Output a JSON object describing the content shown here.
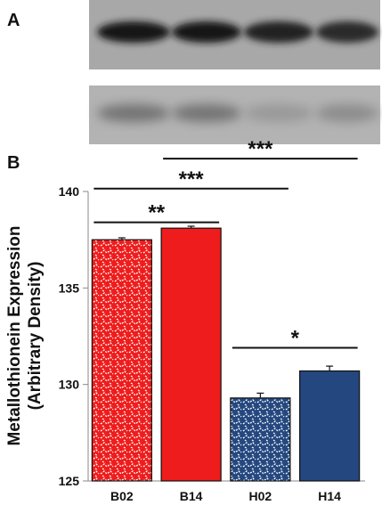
{
  "panels": {
    "a_label": "A",
    "b_label": "B"
  },
  "blot": {
    "lanes": 4,
    "band_top_darkness": [
      0.92,
      0.9,
      0.86,
      0.84
    ],
    "band_bottom_darkness": [
      0.55,
      0.55,
      0.4,
      0.45
    ]
  },
  "chart_data": {
    "type": "bar",
    "categories": [
      "B02",
      "B14",
      "H02",
      "H14"
    ],
    "values": [
      137.5,
      138.1,
      129.3,
      130.7
    ],
    "errors": [
      0.1,
      0.1,
      0.25,
      0.25
    ],
    "xlabel": "",
    "ylabel_line1": "Metallothionein Expression",
    "ylabel_line2": "(Arbitrary Density)",
    "ylim": [
      125,
      140
    ],
    "yticks": [
      125,
      130,
      135,
      140
    ],
    "grid": false,
    "bar_styles": [
      {
        "color": "#ee1c1c",
        "pattern": "hatched"
      },
      {
        "color": "#ee1c1c",
        "pattern": "solid"
      },
      {
        "color": "#24477f",
        "pattern": "hatched"
      },
      {
        "color": "#24477f",
        "pattern": "solid"
      }
    ],
    "significance": [
      {
        "from": 2,
        "to": 3,
        "label": "*",
        "at": 131.9
      },
      {
        "from": 0,
        "to": 1,
        "label": "**",
        "at": 138.4
      },
      {
        "from": 0,
        "to": 2,
        "label": "***",
        "at": 140.15
      },
      {
        "from": 1,
        "to": 3,
        "label": "***",
        "at": 141.7
      }
    ]
  }
}
